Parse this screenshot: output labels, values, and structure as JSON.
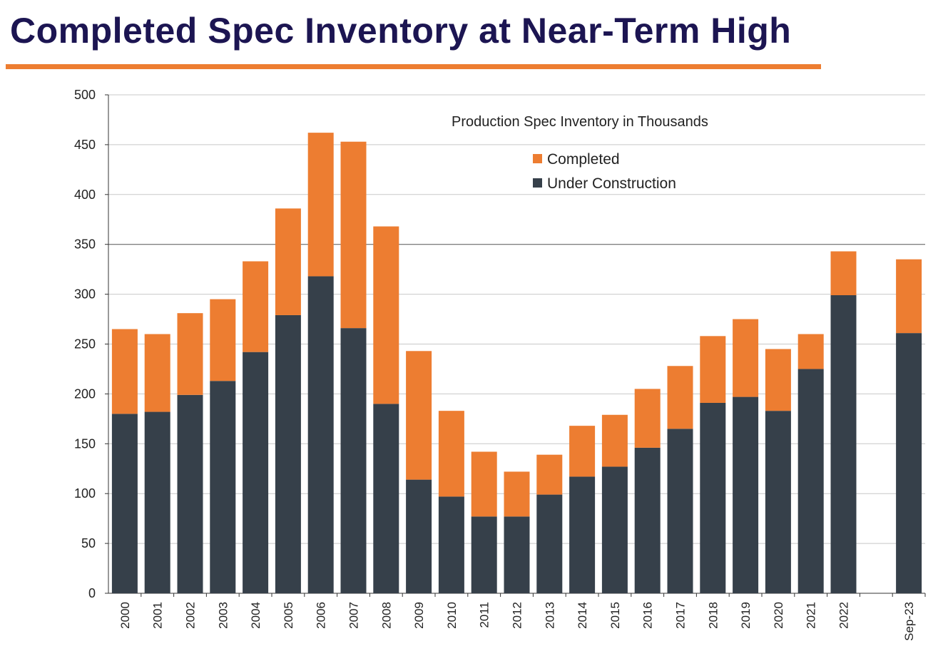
{
  "slide_title": "Completed Spec Inventory at Near-Term High",
  "chart_data": {
    "type": "bar",
    "stacked": true,
    "title": "Production Spec Inventory in Thousands",
    "xlabel": "",
    "ylabel": "",
    "ylim": [
      0,
      500
    ],
    "yticks": [
      0,
      50,
      100,
      150,
      200,
      250,
      300,
      350,
      400,
      450,
      500
    ],
    "grid": true,
    "legend_position": "top-center",
    "categories": [
      "2000",
      "2001",
      "2002",
      "2003",
      "2004",
      "2005",
      "2006",
      "2007",
      "2008",
      "2009",
      "2010",
      "2011",
      "2012",
      "2013",
      "2014",
      "2015",
      "2016",
      "2017",
      "2018",
      "2019",
      "2020",
      "2021",
      "2022",
      "",
      "Sep-23"
    ],
    "series": [
      {
        "name": "Under Construction",
        "color": "#36404A",
        "values": [
          180,
          182,
          199,
          213,
          242,
          279,
          318,
          266,
          190,
          114,
          97,
          77,
          77,
          99,
          117,
          127,
          146,
          165,
          191,
          197,
          183,
          225,
          299,
          null,
          261
        ]
      },
      {
        "name": "Completed",
        "color": "#ED7D31",
        "values": [
          85,
          78,
          82,
          82,
          91,
          107,
          144,
          187,
          178,
          129,
          86,
          65,
          45,
          40,
          51,
          52,
          59,
          63,
          67,
          78,
          62,
          35,
          44,
          null,
          74
        ]
      }
    ],
    "legend_order": [
      "Completed",
      "Under Construction"
    ]
  }
}
